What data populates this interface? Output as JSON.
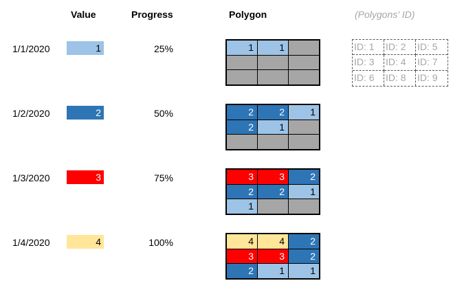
{
  "headers": {
    "value": "Value",
    "progress": "Progress",
    "polygon": "Polygon",
    "ids": "(Polygons' ID)"
  },
  "colors": {
    "level1": "#9dc3e6",
    "level2": "#2e75b6",
    "level3": "#ff0000",
    "level4": "#ffe699",
    "empty": "#a6a6a6"
  },
  "rows": [
    {
      "date": "1/1/2020",
      "value": "1",
      "value_color": "#9dc3e6",
      "progress": "25%",
      "cells": [
        {
          "text": "1",
          "color": "#9dc3e6",
          "fg": "#000"
        },
        {
          "text": "1",
          "color": "#9dc3e6",
          "fg": "#000"
        },
        {
          "text": "",
          "color": "#a6a6a6",
          "fg": "#000"
        },
        {
          "text": "",
          "color": "#a6a6a6",
          "fg": "#000"
        },
        {
          "text": "",
          "color": "#a6a6a6",
          "fg": "#000"
        },
        {
          "text": "",
          "color": "#a6a6a6",
          "fg": "#000"
        },
        {
          "text": "",
          "color": "#a6a6a6",
          "fg": "#000"
        },
        {
          "text": "",
          "color": "#a6a6a6",
          "fg": "#000"
        },
        {
          "text": "",
          "color": "#a6a6a6",
          "fg": "#000"
        }
      ]
    },
    {
      "date": "1/2/2020",
      "value": "2",
      "value_color": "#2e75b6",
      "progress": "50%",
      "cells": [
        {
          "text": "2",
          "color": "#2e75b6",
          "fg": "#fff"
        },
        {
          "text": "2",
          "color": "#2e75b6",
          "fg": "#fff"
        },
        {
          "text": "1",
          "color": "#9dc3e6",
          "fg": "#000"
        },
        {
          "text": "2",
          "color": "#2e75b6",
          "fg": "#fff"
        },
        {
          "text": "1",
          "color": "#9dc3e6",
          "fg": "#000"
        },
        {
          "text": "",
          "color": "#a6a6a6",
          "fg": "#000"
        },
        {
          "text": "",
          "color": "#a6a6a6",
          "fg": "#000"
        },
        {
          "text": "",
          "color": "#a6a6a6",
          "fg": "#000"
        },
        {
          "text": "",
          "color": "#a6a6a6",
          "fg": "#000"
        }
      ]
    },
    {
      "date": "1/3/2020",
      "value": "3",
      "value_color": "#ff0000",
      "progress": "75%",
      "cells": [
        {
          "text": "3",
          "color": "#ff0000",
          "fg": "#fff"
        },
        {
          "text": "3",
          "color": "#ff0000",
          "fg": "#fff"
        },
        {
          "text": "2",
          "color": "#2e75b6",
          "fg": "#fff"
        },
        {
          "text": "2",
          "color": "#2e75b6",
          "fg": "#fff"
        },
        {
          "text": "2",
          "color": "#2e75b6",
          "fg": "#fff"
        },
        {
          "text": "1",
          "color": "#9dc3e6",
          "fg": "#000"
        },
        {
          "text": "1",
          "color": "#9dc3e6",
          "fg": "#000"
        },
        {
          "text": "",
          "color": "#a6a6a6",
          "fg": "#000"
        },
        {
          "text": "",
          "color": "#a6a6a6",
          "fg": "#000"
        }
      ]
    },
    {
      "date": "1/4/2020",
      "value": "4",
      "value_color": "#ffe699",
      "progress": "100%",
      "cells": [
        {
          "text": "4",
          "color": "#ffe699",
          "fg": "#000"
        },
        {
          "text": "4",
          "color": "#ffe699",
          "fg": "#000"
        },
        {
          "text": "2",
          "color": "#2e75b6",
          "fg": "#fff"
        },
        {
          "text": "3",
          "color": "#ff0000",
          "fg": "#fff"
        },
        {
          "text": "3",
          "color": "#ff0000",
          "fg": "#fff"
        },
        {
          "text": "2",
          "color": "#2e75b6",
          "fg": "#fff"
        },
        {
          "text": "2",
          "color": "#2e75b6",
          "fg": "#fff"
        },
        {
          "text": "1",
          "color": "#9dc3e6",
          "fg": "#000"
        },
        {
          "text": "1",
          "color": "#9dc3e6",
          "fg": "#000"
        }
      ]
    }
  ],
  "ids": [
    "ID: 1",
    "ID: 2",
    "ID: 5",
    "ID: 3",
    "ID: 4",
    "ID: 7",
    "ID: 6",
    "ID: 8",
    "ID: 9"
  ]
}
